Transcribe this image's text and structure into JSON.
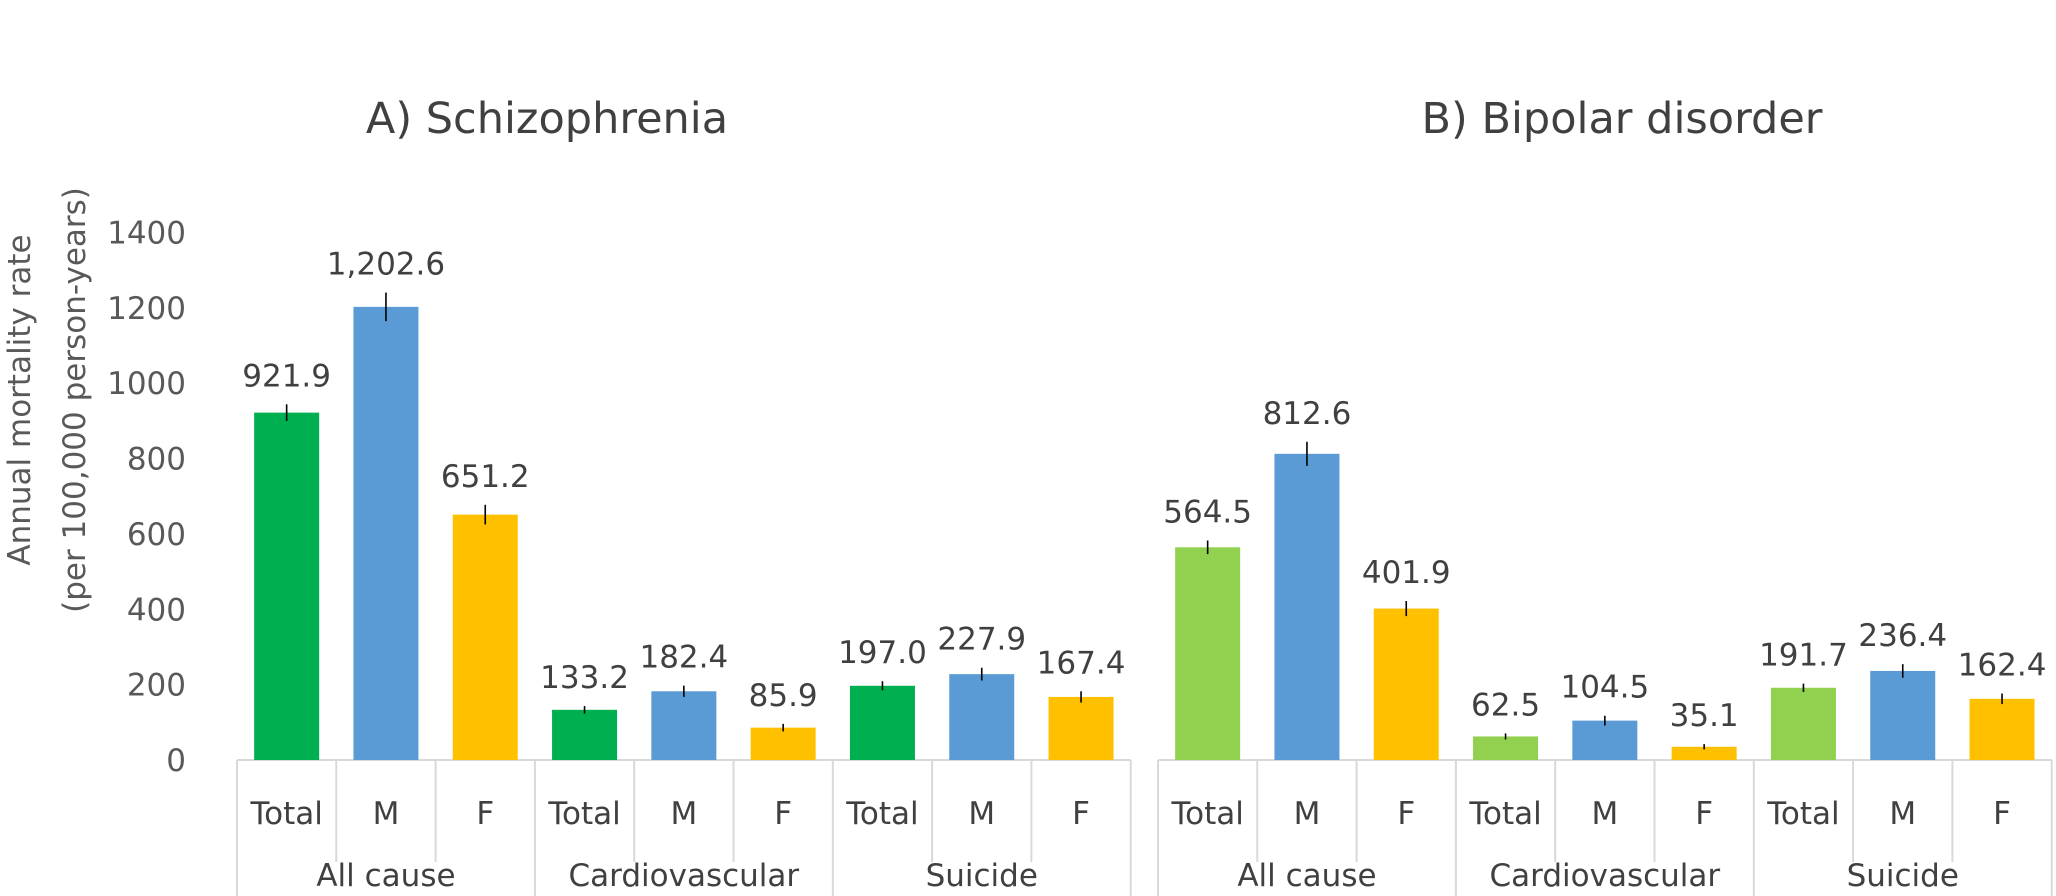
{
  "chart_data": [
    {
      "type": "bar",
      "title": "A) Schizophrenia",
      "ylabel": "Annual mortality rate (per 100,000 person-years)",
      "ylabel_lines": [
        "Annual mortality rate",
        "(per 100,000 person-years)"
      ],
      "ylim": [
        0,
        1400
      ],
      "yticks": [
        "0",
        "200",
        "400",
        "600",
        "800",
        "1000",
        "1200",
        "1400"
      ],
      "grid": false,
      "groups": [
        "All cause",
        "Cardiovascular",
        "Suicide"
      ],
      "categories": [
        "Total",
        "M",
        "F",
        "Total",
        "M",
        "F",
        "Total",
        "M",
        "F"
      ],
      "values": [
        921.9,
        1202.6,
        651.2,
        133.2,
        182.4,
        85.9,
        197.0,
        227.9,
        167.4
      ],
      "data_labels": [
        "921.9",
        "1,202.6",
        "651.2",
        "133.2",
        "182.4",
        "85.9",
        "197.0",
        "227.9",
        "167.4"
      ],
      "error_bars": [
        22,
        38,
        26,
        10,
        15,
        10,
        12,
        17,
        15
      ],
      "colors": [
        "#00b050",
        "#5b9bd5",
        "#ffc000",
        "#00b050",
        "#5b9bd5",
        "#ffc000",
        "#00b050",
        "#5b9bd5",
        "#ffc000"
      ]
    },
    {
      "type": "bar",
      "title": "B) Bipolar disorder",
      "ylim": [
        0,
        1400
      ],
      "grid": false,
      "groups": [
        "All cause",
        "Cardiovascular",
        "Suicide"
      ],
      "categories": [
        "Total",
        "M",
        "F",
        "Total",
        "M",
        "F",
        "Total",
        "M",
        "F"
      ],
      "values": [
        564.5,
        812.6,
        401.9,
        62.5,
        104.5,
        35.1,
        191.7,
        236.4,
        162.4
      ],
      "data_labels": [
        "564.5",
        "812.6",
        "401.9",
        "62.5",
        "104.5",
        "35.1",
        "191.7",
        "236.4",
        "162.4"
      ],
      "error_bars": [
        18,
        32,
        20,
        8,
        13,
        7,
        11,
        18,
        14
      ],
      "colors": [
        "#92d050",
        "#5b9bd5",
        "#ffc000",
        "#92d050",
        "#5b9bd5",
        "#ffc000",
        "#92d050",
        "#5b9bd5",
        "#ffc000"
      ]
    }
  ]
}
